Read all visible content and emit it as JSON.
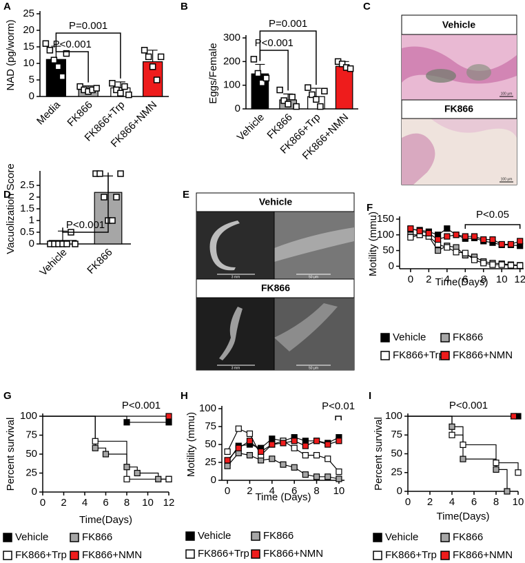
{
  "chart_data": [
    {
      "panel": "A",
      "type": "bar",
      "ylabel": "NAD (pg/worm)",
      "categories": [
        "Media",
        "FK866",
        "FK866+Trp",
        "FK866+NMN"
      ],
      "values": [
        11.2,
        2.4,
        2.6,
        10.5
      ],
      "errors": [
        4,
        0.8,
        1.8,
        3.5
      ],
      "points": [
        [
          16,
          14,
          11,
          9,
          6,
          13
        ],
        [
          3,
          2,
          1.5,
          2,
          2.5
        ],
        [
          4,
          2,
          1,
          3,
          0.5
        ],
        [
          14,
          12,
          9,
          5,
          12
        ]
      ],
      "colors": [
        "#000000",
        "#a6a6a6",
        "#ffffff",
        "#ee1c1c"
      ],
      "ylim": [
        0,
        25
      ],
      "yticks": [
        0,
        5,
        10,
        15,
        20,
        25
      ],
      "annotations": [
        "P=0.001",
        "P<0.001"
      ]
    },
    {
      "panel": "B",
      "type": "bar",
      "ylabel": "Eggs/Female",
      "categories": [
        "Vehicle",
        "FK866",
        "FK866+Trp",
        "FK866+NMN"
      ],
      "values": [
        148,
        38,
        52,
        180
      ],
      "errors": [
        40,
        25,
        35,
        20
      ],
      "points": [
        [
          210,
          150,
          110,
          130
        ],
        [
          80,
          35,
          20,
          50,
          10
        ],
        [
          90,
          60,
          40,
          10,
          75
        ],
        [
          200,
          190,
          175,
          170
        ]
      ],
      "colors": [
        "#000000",
        "#a6a6a6",
        "#ffffff",
        "#ee1c1c"
      ],
      "ylim": [
        0,
        300
      ],
      "yticks": [
        0,
        100,
        200,
        300
      ],
      "annotations": [
        "P=0.001",
        "P<0.001"
      ]
    },
    {
      "panel": "D",
      "type": "bar",
      "ylabel": "Vacuolization Score",
      "categories": [
        "Vehicle",
        "FK866"
      ],
      "values": [
        0.15,
        2.2
      ],
      "errors": [
        0.4,
        0.7
      ],
      "points": [
        [
          0,
          0,
          0,
          0,
          0,
          0.5,
          0
        ],
        [
          3,
          3,
          2,
          1,
          1,
          2,
          3
        ]
      ],
      "colors": [
        "#ffffff",
        "#a6a6a6"
      ],
      "ylim": [
        0,
        3
      ],
      "yticks": [
        0,
        0.5,
        1,
        1.5,
        2,
        2.5
      ],
      "annotations": [
        "P<0.001"
      ]
    },
    {
      "panel": "F",
      "type": "line",
      "xlabel": "Time(Days)",
      "ylabel": "Motility (mmu)",
      "x": [
        0,
        1,
        2,
        3,
        4,
        5,
        6,
        7,
        8,
        9,
        10,
        11,
        12
      ],
      "xlim": [
        -1.2,
        12.4
      ],
      "xticks": [
        0,
        2,
        4,
        6,
        8,
        10,
        12
      ],
      "ylim": [
        -8,
        150
      ],
      "yticks": [
        0,
        50,
        100,
        150
      ],
      "annotations": [
        "P<0.05"
      ],
      "series": [
        {
          "name": "Vehicle",
          "color": "#000000",
          "values": [
            118,
            115,
            110,
            100,
            120,
            100,
            88,
            90,
            80,
            75,
            68,
            68,
            65
          ]
        },
        {
          "name": "FK866",
          "color": "#a6a6a6",
          "values": [
            100,
            100,
            95,
            50,
            65,
            60,
            35,
            30,
            15,
            10,
            8,
            5,
            3
          ]
        },
        {
          "name": "FK866+Trp",
          "color": "#ffffff",
          "values": [
            92,
            100,
            95,
            70,
            60,
            45,
            42,
            20,
            10,
            5,
            5,
            3,
            2
          ]
        },
        {
          "name": "FK866+NMN",
          "color": "#ee1c1c",
          "values": [
            120,
            112,
            105,
            85,
            95,
            100,
            95,
            95,
            85,
            85,
            70,
            70,
            80
          ]
        }
      ]
    },
    {
      "panel": "G",
      "type": "step",
      "xlabel": "Time(Days)",
      "ylabel": "Percent survival",
      "xlim": [
        0,
        12
      ],
      "xticks": [
        0,
        2,
        4,
        6,
        8,
        10,
        12
      ],
      "ylim": [
        0,
        100
      ],
      "yticks": [
        0,
        25,
        50,
        75,
        100
      ],
      "annotations": [
        "P<0.001"
      ],
      "series": [
        {
          "name": "Vehicle",
          "color": "#000000",
          "x": [
            0,
            8,
            12
          ],
          "values": [
            100,
            92,
            92
          ]
        },
        {
          "name": "FK866",
          "color": "#a6a6a6",
          "x": [
            0,
            5,
            6,
            8,
            9,
            11,
            12
          ],
          "values": [
            100,
            58,
            50,
            33,
            25,
            17,
            17
          ]
        },
        {
          "name": "FK866+Trp",
          "color": "#ffffff",
          "x": [
            0,
            5,
            8,
            12
          ],
          "values": [
            100,
            67,
            17,
            17
          ]
        },
        {
          "name": "FK866+NMN",
          "color": "#ee1c1c",
          "x": [
            0,
            12
          ],
          "values": [
            100,
            100
          ]
        }
      ]
    },
    {
      "panel": "H",
      "type": "line",
      "xlabel": "Time (Days)",
      "ylabel": "Motility (mmu)",
      "x": [
        0,
        1,
        2,
        3,
        4,
        5,
        6,
        7,
        8,
        9,
        10
      ],
      "xlim": [
        -0.5,
        10.5
      ],
      "xticks": [
        0,
        2,
        4,
        6,
        8,
        10
      ],
      "ylim": [
        0,
        100
      ],
      "yticks": [
        0,
        25,
        50,
        75,
        100
      ],
      "annotations": [
        "P<0.01"
      ],
      "series": [
        {
          "name": "Vehicle",
          "color": "#000000",
          "values": [
            25,
            48,
            50,
            45,
            58,
            55,
            60,
            55,
            55,
            52,
            60
          ]
        },
        {
          "name": "FK866",
          "color": "#a6a6a6",
          "values": [
            20,
            38,
            35,
            28,
            30,
            22,
            18,
            8,
            5,
            5,
            2
          ]
        },
        {
          "name": "FK866+Trp",
          "color": "#ffffff",
          "values": [
            40,
            72,
            65,
            35,
            50,
            55,
            45,
            35,
            35,
            30,
            12
          ]
        },
        {
          "name": "FK866+NMN",
          "color": "#ee1c1c",
          "values": [
            28,
            45,
            55,
            40,
            50,
            52,
            55,
            48,
            55,
            50,
            55
          ]
        }
      ]
    },
    {
      "panel": "I",
      "type": "step",
      "xlabel": "Time(Days)",
      "ylabel": "Percent survival",
      "xlim": [
        0,
        10
      ],
      "xticks": [
        0,
        2,
        4,
        6,
        8,
        10
      ],
      "ylim": [
        0,
        100
      ],
      "yticks": [
        0,
        25,
        50,
        75,
        100
      ],
      "annotations": [
        "P<0.001"
      ],
      "series": [
        {
          "name": "Vehicle",
          "color": "#000000",
          "x": [
            0,
            10
          ],
          "values": [
            100,
            100
          ]
        },
        {
          "name": "FK866",
          "color": "#a6a6a6",
          "x": [
            0,
            4,
            5,
            8,
            9
          ],
          "values": [
            100,
            86,
            43,
            29,
            0
          ]
        },
        {
          "name": "FK866+Trp",
          "color": "#ffffff",
          "x": [
            0,
            4,
            5,
            8,
            10
          ],
          "values": [
            100,
            75,
            62,
            38,
            25
          ]
        },
        {
          "name": "FK866+NMN",
          "color": "#ee1c1c",
          "x": [
            0,
            9.6
          ],
          "values": [
            100,
            100
          ]
        }
      ]
    }
  ],
  "images": [
    {
      "panel": "C",
      "labels": [
        "Vehicle",
        "FK866"
      ],
      "scale_bars": [
        "100 μm",
        "100 μm"
      ]
    },
    {
      "panel": "E",
      "labels": [
        "Vehicle",
        "FK866"
      ],
      "scale_bars": [
        "3 mm",
        "50 μm",
        "3 mm",
        "50 μm"
      ]
    }
  ]
}
